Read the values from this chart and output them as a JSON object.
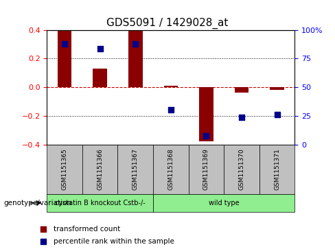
{
  "title": "GDS5091 / 1429028_at",
  "samples": [
    "GSM1151365",
    "GSM1151366",
    "GSM1151367",
    "GSM1151368",
    "GSM1151369",
    "GSM1151370",
    "GSM1151371"
  ],
  "red_bars": [
    0.4,
    0.13,
    0.4,
    0.01,
    -0.38,
    -0.04,
    -0.02
  ],
  "blue_dots": [
    0.3,
    0.27,
    0.3,
    -0.16,
    -0.34,
    -0.21,
    -0.19
  ],
  "ylim": [
    -0.4,
    0.4
  ],
  "yticks_left": [
    -0.4,
    -0.2,
    0.0,
    0.2,
    0.4
  ],
  "yticks_right": [
    0,
    25,
    50,
    75,
    100
  ],
  "yticks_right_labels": [
    "0",
    "25",
    "50",
    "75",
    "100%"
  ],
  "groups": [
    {
      "label": "cystatin B knockout Cstb-/-",
      "samples": [
        0,
        1,
        2
      ],
      "color": "#90EE90"
    },
    {
      "label": "wild type",
      "samples": [
        3,
        4,
        5,
        6
      ],
      "color": "#90EE90"
    }
  ],
  "bar_color": "#8B0000",
  "dot_color": "#00008B",
  "grid_color": "#000000",
  "zero_line_color": "#CC0000",
  "background_color": "#FFFFFF",
  "legend_red_label": "transformed count",
  "legend_blue_label": "percentile rank within the sample",
  "genotype_label": "genotype/variation",
  "box_bg": "#C0C0C0"
}
